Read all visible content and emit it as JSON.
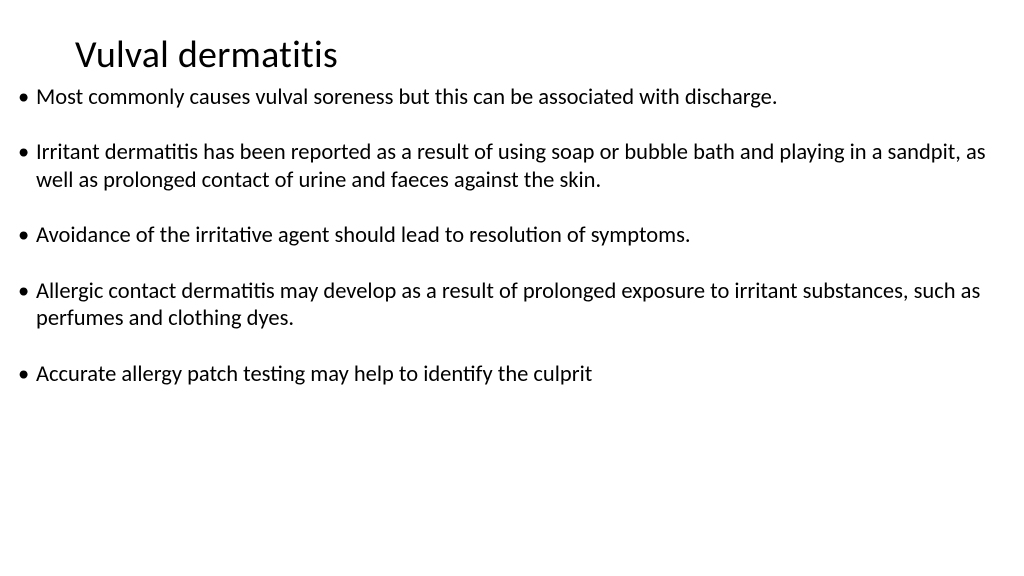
{
  "title": "Vulval dermatitis",
  "bullets": [
    "Most commonly causes vulval soreness but this can be associated with discharge.",
    "Irritant dermatitis has been reported as a result of using soap or bubble bath and playing in a sandpit, as well as prolonged contact of urine and faeces against the skin.",
    "Avoidance of the irritative agent should lead to resolution of symptoms.",
    "Allergic contact dermatitis may develop as a result of prolonged exposure to irritant substances, such as perfumes and clothing dyes.",
    "Accurate allergy patch testing may help to identify the culprit"
  ],
  "style": {
    "background_color": "#ffffff",
    "text_color": "#000000",
    "title_fontsize": 38,
    "body_fontsize": 22.5,
    "font_family": "Calibri",
    "bullet_marker": "•"
  }
}
